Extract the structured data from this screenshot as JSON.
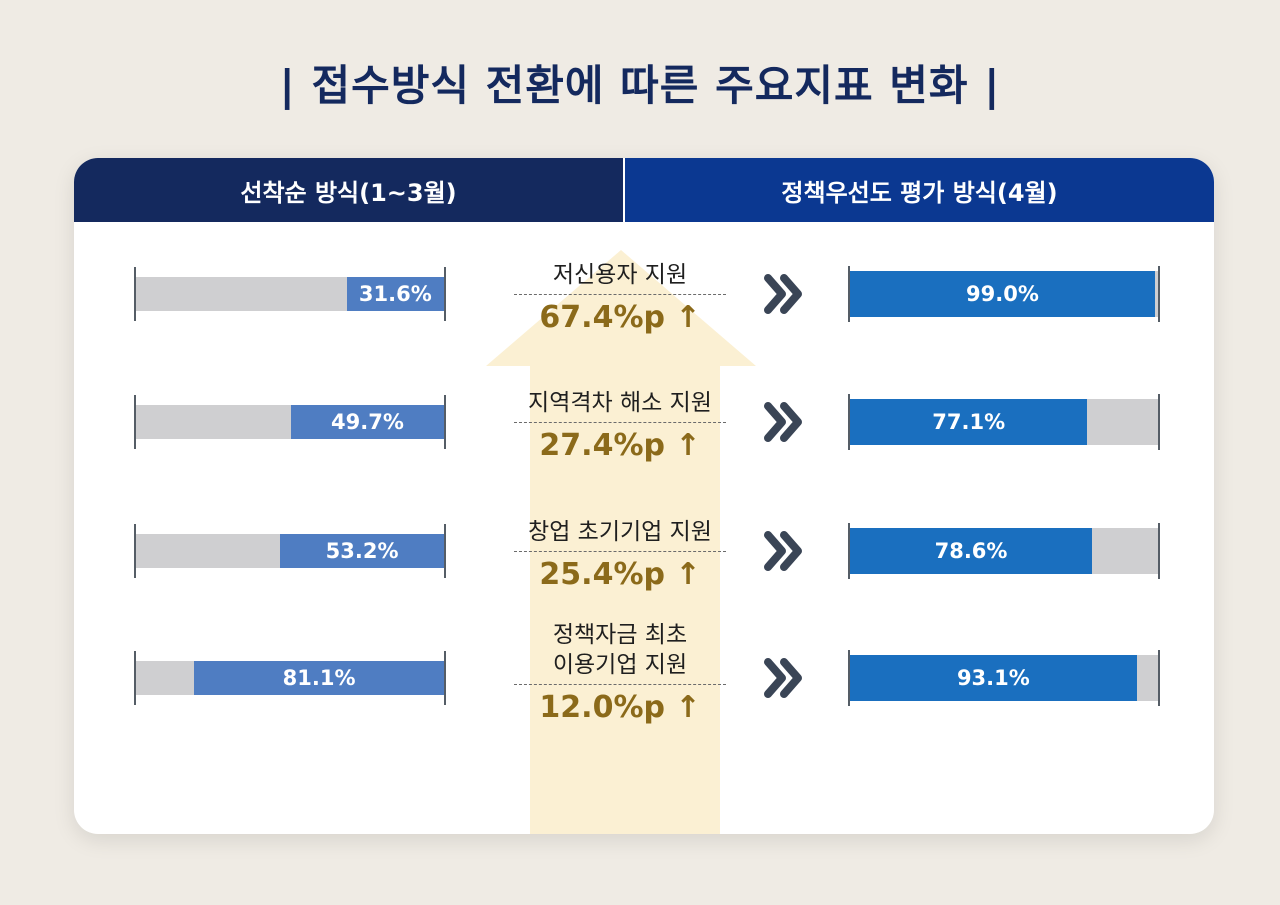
{
  "title": "| 접수방식 전환에 따른 주요지표 변화 |",
  "headers": {
    "left": "선착순 방식(1~3월)",
    "right": "정책우선도 평가 방식(4월)"
  },
  "colors": {
    "title": "#14295e",
    "header_left": "#14295e",
    "header_right": "#0b3891",
    "left_bar": "#4f7dc2",
    "right_bar": "#1a6fbf",
    "track": "#cfcfd1",
    "change_text": "#8b6a1a",
    "arrow": "#fbf0d3"
  },
  "icons": {
    "transition": "double-chevron-right-icon",
    "background": "up-arrow-icon"
  },
  "chart_data": {
    "type": "bar",
    "categories": [
      "저신용자 지원",
      "지역격차 해소 지원",
      "창업 초기기업 지원",
      "정책자금 최초\n이용기업 지원"
    ],
    "series": [
      {
        "name": "선착순 방식(1~3월)",
        "values": [
          31.6,
          49.7,
          53.2,
          81.1
        ],
        "labels": [
          "31.6%",
          "49.7%",
          "53.2%",
          "81.1%"
        ]
      },
      {
        "name": "정책우선도 평가 방식(4월)",
        "values": [
          99.0,
          77.1,
          78.6,
          93.1
        ],
        "labels": [
          "99.0%",
          "77.1%",
          "78.6%",
          "93.1%"
        ]
      }
    ],
    "changes": [
      "67.4%p ↑",
      "27.4%p ↑",
      "25.4%p ↑",
      "12.0%p ↑"
    ],
    "ylim": [
      0,
      100
    ]
  }
}
